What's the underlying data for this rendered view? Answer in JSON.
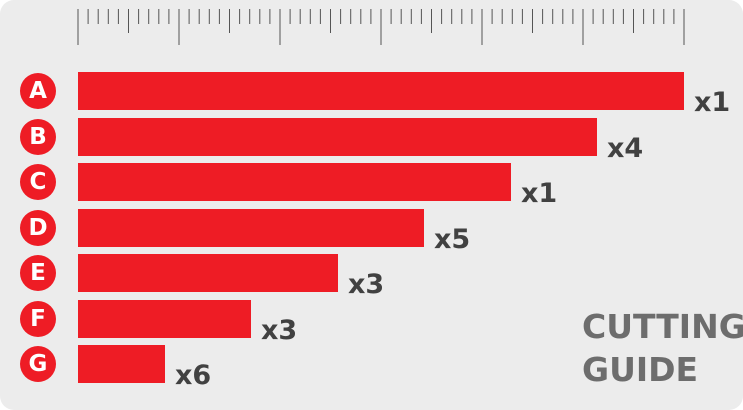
{
  "title_line1": "CUTTING",
  "title_line2": "GUIDE",
  "colors": {
    "accent": "#ee1c25",
    "text_dark": "#414141",
    "text_title": "#6d6d6d",
    "background": "#ececec"
  },
  "chart_data": {
    "type": "bar",
    "orientation": "horizontal",
    "ruler_ticks": 60,
    "categories": [
      "A",
      "B",
      "C",
      "D",
      "E",
      "F",
      "G"
    ],
    "values": [
      7,
      6,
      5,
      4,
      3,
      2,
      1
    ],
    "quantity_labels": [
      "x1",
      "x4",
      "x1",
      "x5",
      "x3",
      "x3",
      "x6"
    ]
  }
}
